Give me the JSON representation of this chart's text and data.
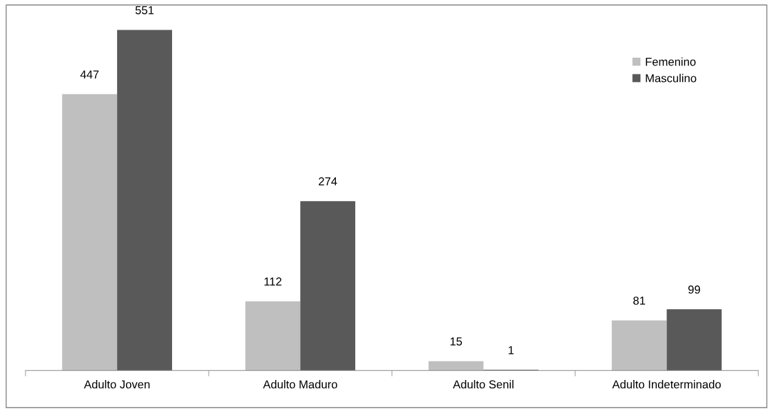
{
  "chart_data": {
    "type": "bar",
    "categories": [
      "Adulto Joven",
      "Adulto Maduro",
      "Adulto Senil",
      "Adulto Indeterminado"
    ],
    "series": [
      {
        "name": "Femenino",
        "color": "#bfbfbf",
        "values": [
          447,
          112,
          15,
          81
        ]
      },
      {
        "name": "Masculino",
        "color": "#595959",
        "values": [
          551,
          274,
          1,
          99
        ]
      }
    ],
    "data_labels": true,
    "legend": "top right",
    "grid": false
  }
}
